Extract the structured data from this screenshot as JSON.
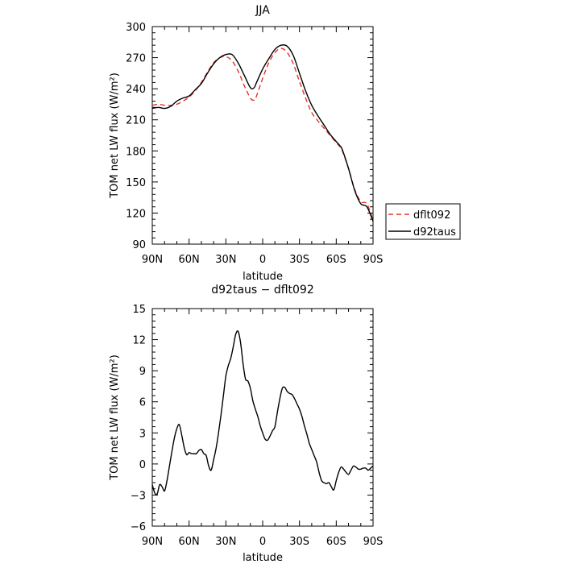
{
  "chart_data": [
    {
      "type": "line",
      "title": "JJA",
      "xlabel": "latitude",
      "ylabel": "TOM net LW flux (W/m²)",
      "x_ticks": [
        90,
        60,
        30,
        0,
        -30,
        -60,
        -90
      ],
      "x_tick_labels": [
        "90N",
        "60N",
        "30N",
        "0",
        "30S",
        "60S",
        "90S"
      ],
      "y_ticks": [
        90,
        120,
        150,
        180,
        210,
        240,
        270,
        300
      ],
      "xlim": [
        90,
        -90
      ],
      "ylim": [
        90,
        300
      ],
      "legend": {
        "placement": "right",
        "entries": [
          "dflt092",
          "d92taus"
        ]
      },
      "series": [
        {
          "name": "dflt092",
          "color": "#e8302a",
          "dash": "dashed",
          "x": [
            90,
            85,
            80,
            75,
            70,
            65,
            60,
            55,
            50,
            45,
            40,
            35,
            30,
            25,
            20,
            15,
            10,
            7,
            5,
            0,
            -5,
            -10,
            -15,
            -20,
            -25,
            -30,
            -35,
            -40,
            -45,
            -50,
            -55,
            -60,
            -63,
            -65,
            -70,
            -75,
            -80,
            -85,
            -90
          ],
          "values": [
            224,
            225,
            224,
            224,
            225,
            228,
            232,
            238,
            246,
            256,
            265,
            270,
            271,
            267,
            257,
            243,
            231,
            229,
            233,
            250,
            265,
            275,
            279,
            275,
            264,
            247,
            231,
            217,
            209,
            202,
            195,
            188,
            184,
            180,
            163,
            143,
            131,
            129,
            113
          ]
        },
        {
          "name": "d92taus",
          "color": "#000000",
          "dash": "solid",
          "x": [
            90,
            85,
            80,
            75,
            70,
            65,
            60,
            55,
            50,
            45,
            40,
            35,
            30,
            25,
            20,
            15,
            10,
            7,
            5,
            0,
            -5,
            -10,
            -15,
            -20,
            -25,
            -30,
            -35,
            -40,
            -45,
            -50,
            -55,
            -60,
            -63,
            -65,
            -70,
            -75,
            -80,
            -85,
            -90
          ],
          "values": [
            221,
            222,
            221,
            223,
            228,
            231,
            233,
            239,
            245,
            255,
            264,
            270,
            273,
            273,
            265,
            253,
            241,
            241,
            246,
            259,
            269,
            278,
            282,
            281,
            272,
            255,
            238,
            224,
            214,
            205,
            196,
            189,
            185,
            181,
            163,
            142,
            129,
            126,
            112
          ]
        }
      ]
    },
    {
      "type": "line",
      "title": "d92taus − dflt092",
      "xlabel": "latitude",
      "ylabel": "TOM net LW flux (W/m²)",
      "x_ticks": [
        90,
        60,
        30,
        0,
        -30,
        -60,
        -90
      ],
      "x_tick_labels": [
        "90N",
        "60N",
        "30N",
        "0",
        "30S",
        "60S",
        "90S"
      ],
      "y_ticks": [
        -6,
        -3,
        0,
        3,
        6,
        9,
        12,
        15
      ],
      "xlim": [
        90,
        -90
      ],
      "ylim": [
        -6,
        15
      ],
      "series": [
        {
          "color": "#000000",
          "dash": "solid",
          "x": [
            90,
            88,
            86,
            84,
            82,
            80,
            78,
            76,
            74,
            72,
            70,
            68,
            66,
            64,
            62,
            60,
            58,
            56,
            54,
            52,
            50,
            48,
            46,
            44,
            42,
            40,
            38,
            36,
            34,
            32,
            30,
            28,
            26,
            24,
            22,
            20,
            18,
            16,
            14,
            12,
            10,
            8,
            6,
            4,
            2,
            0,
            -2,
            -4,
            -6,
            -8,
            -10,
            -12,
            -14,
            -16,
            -18,
            -20,
            -22,
            -24,
            -26,
            -28,
            -30,
            -32,
            -34,
            -36,
            -38,
            -40,
            -42,
            -44,
            -46,
            -48,
            -50,
            -52,
            -54,
            -56,
            -58,
            -60,
            -62,
            -64,
            -66,
            -68,
            -70,
            -72,
            -74,
            -76,
            -78,
            -80,
            -82,
            -84,
            -86,
            -88,
            -90
          ],
          "values": [
            -2.0,
            -2.8,
            -2.9,
            -2.0,
            -2.2,
            -2.6,
            -1.6,
            -0.2,
            1.2,
            2.5,
            3.4,
            3.8,
            2.8,
            1.6,
            0.9,
            1.1,
            1.0,
            1.0,
            1.0,
            1.3,
            1.4,
            1.0,
            0.8,
            -0.2,
            -0.6,
            0.4,
            1.5,
            3.0,
            4.7,
            6.6,
            8.5,
            9.5,
            10.2,
            11.3,
            12.5,
            12.8,
            11.7,
            9.7,
            8.2,
            8.0,
            7.3,
            6.1,
            5.3,
            4.6,
            3.7,
            3.0,
            2.4,
            2.3,
            2.7,
            3.2,
            3.6,
            5.0,
            6.3,
            7.3,
            7.4,
            7.0,
            6.8,
            6.7,
            6.3,
            5.8,
            5.3,
            4.6,
            3.7,
            2.9,
            2.0,
            1.4,
            0.8,
            0.2,
            -0.8,
            -1.6,
            -1.8,
            -1.9,
            -1.8,
            -2.2,
            -2.5,
            -1.6,
            -0.8,
            -0.3,
            -0.5,
            -0.8,
            -1.0,
            -0.6,
            -0.2,
            -0.3,
            -0.5,
            -0.5,
            -0.4,
            -0.4,
            -0.6,
            -0.4,
            -0.2
          ]
        }
      ]
    }
  ]
}
